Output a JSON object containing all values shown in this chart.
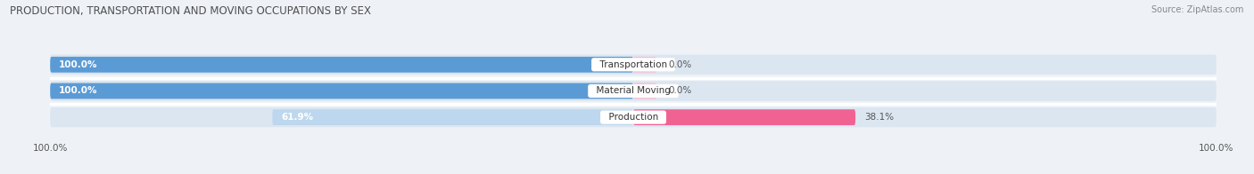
{
  "title": "PRODUCTION, TRANSPORTATION AND MOVING OCCUPATIONS BY SEX",
  "source": "Source: ZipAtlas.com",
  "categories": [
    "Transportation",
    "Material Moving",
    "Production"
  ],
  "male_values": [
    100.0,
    100.0,
    61.9
  ],
  "female_values": [
    0.0,
    0.0,
    38.1
  ],
  "male_color_strong": "#5b9bd5",
  "male_color_light": "#bdd7ee",
  "female_color_strong": "#f06292",
  "female_color_light": "#f8bbd0",
  "bar_bg_color": "#dce6f1",
  "background_color": "#eef2f7",
  "figsize": [
    14.06,
    1.96
  ],
  "dpi": 100,
  "x_left_label": "100.0%",
  "x_right_label": "100.0%"
}
